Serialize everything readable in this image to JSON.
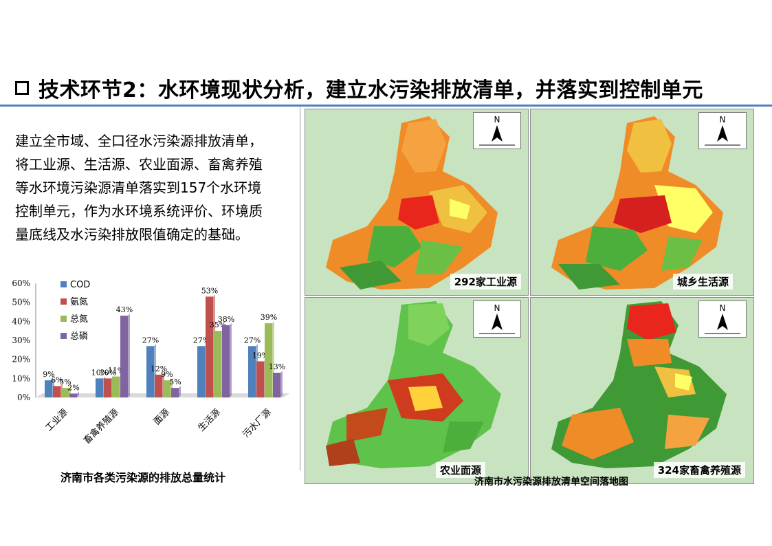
{
  "slide": {
    "title": "技术环节2：水环境现状分析，建立水污染排放清单，并落实到控制单元",
    "paragraph_lines": [
      "建立全市域、全口径水污染源排放清单，",
      "将工业源、生活源、农业面源、畜禽养殖",
      "等水环境污染源清单落实到157个水环境",
      "控制单元，作为水环境系统评价、环境质",
      "量底线及水污染排放限值确定的基础。"
    ],
    "chart_caption": "济南市各类污染源的排放总量统计",
    "maps_caption": "济南市水污染源排放清单空间落地图",
    "maps": [
      {
        "label": "292家工业源",
        "north": "N"
      },
      {
        "label": "城乡生活源",
        "north": "N"
      },
      {
        "label": "农业面源",
        "north": "N"
      },
      {
        "label": "324家畜禽养殖源",
        "north": "N"
      }
    ],
    "colors": {
      "accent_rule": "#4f81bd"
    }
  },
  "chart_data": {
    "type": "bar",
    "categories": [
      "工业源",
      "畜禽养殖源",
      "面源",
      "生活源",
      "污水厂源"
    ],
    "series": [
      {
        "name": "COD",
        "color": "#4f81bd",
        "values": [
          9,
          10,
          27,
          27,
          27
        ]
      },
      {
        "name": "氨氮",
        "color": "#c0504d",
        "values": [
          6,
          10,
          12,
          53,
          19
        ]
      },
      {
        "name": "总氮",
        "color": "#9bbb59",
        "values": [
          5,
          11,
          9,
          35,
          39
        ]
      },
      {
        "name": "总磷",
        "color": "#8064a2",
        "values": [
          2,
          43,
          5,
          38,
          13
        ]
      }
    ],
    "data_labels": [
      [
        "9%",
        "10%",
        "27%",
        "27%",
        "27%"
      ],
      [
        "6%",
        "10%",
        "12%",
        "53%",
        "19%"
      ],
      [
        "5%",
        "11%",
        "9%",
        "35%",
        "39%"
      ],
      [
        "2%",
        "43%",
        "5%",
        "38%",
        "13%"
      ]
    ],
    "ylim": [
      0,
      60
    ],
    "yticks": [
      "0%",
      "10%",
      "20%",
      "30%",
      "40%",
      "50%",
      "60%"
    ],
    "legend": "top-left inside plot"
  }
}
